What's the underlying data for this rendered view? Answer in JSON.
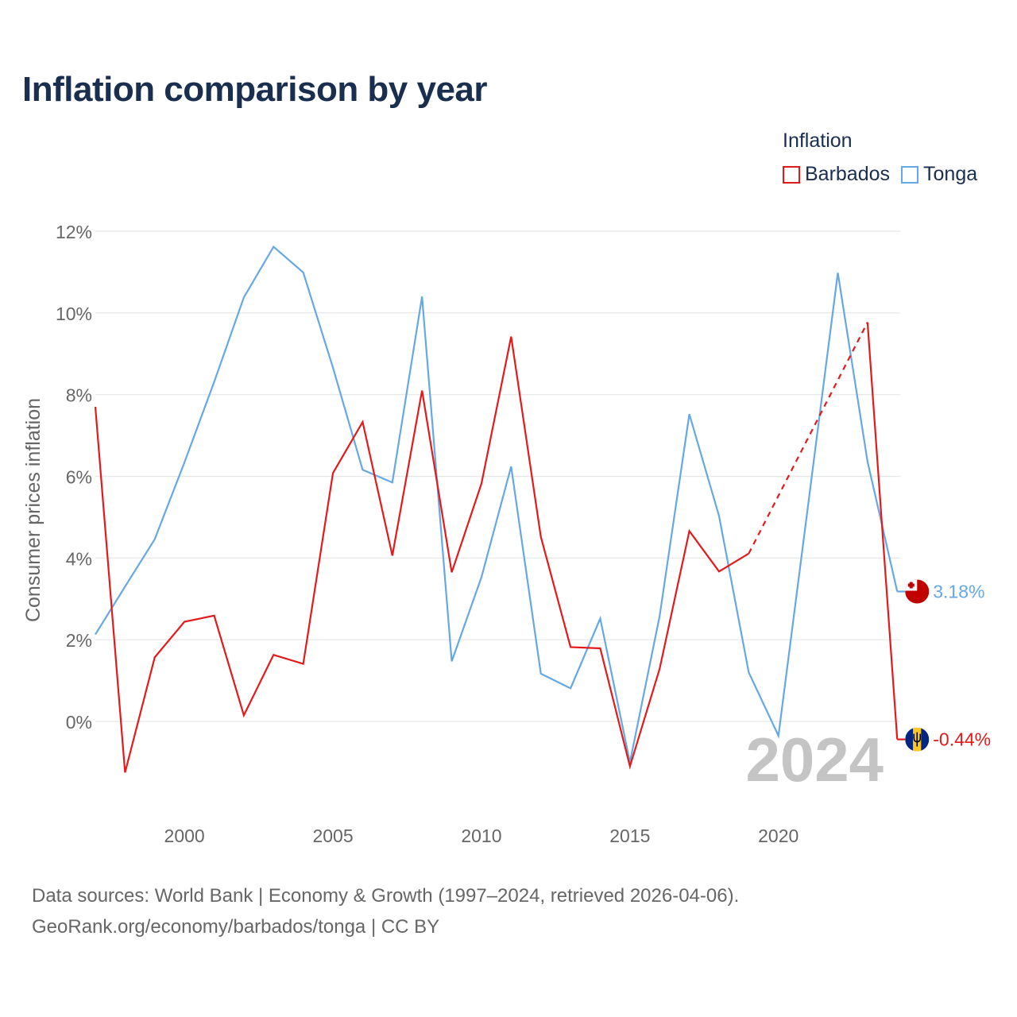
{
  "title": "Inflation comparison by year",
  "legend": {
    "title": "Inflation",
    "items": [
      {
        "label": "Barbados",
        "color": "#e31a1c"
      },
      {
        "label": "Tonga",
        "color": "#66a8e3"
      }
    ]
  },
  "chart_data": {
    "type": "line",
    "title": "Inflation comparison by year",
    "xlabel": "",
    "ylabel": "Consumer prices inflation",
    "xlim": [
      1997,
      2024
    ],
    "ylim": [
      -2,
      12
    ],
    "y_ticks": [
      0,
      2,
      4,
      6,
      8,
      10,
      12
    ],
    "y_tick_labels": [
      "0%",
      "2%",
      "4%",
      "6%",
      "8%",
      "10%",
      "12%"
    ],
    "x_ticks": [
      2000,
      2005,
      2010,
      2015,
      2020
    ],
    "x_tick_labels": [
      "2000",
      "2005",
      "2010",
      "2015",
      "2020"
    ],
    "grid": true,
    "year_label": "2024",
    "x": [
      1997,
      1998,
      1999,
      2000,
      2001,
      2002,
      2003,
      2004,
      2005,
      2006,
      2007,
      2008,
      2009,
      2010,
      2011,
      2012,
      2013,
      2014,
      2015,
      2016,
      2017,
      2018,
      2019,
      2020,
      2021,
      2022,
      2023,
      2024
    ],
    "series": [
      {
        "name": "Barbados",
        "color": "#e31a1c",
        "values": [
          7.7,
          -1.25,
          1.57,
          2.44,
          2.59,
          0.15,
          1.63,
          1.41,
          6.08,
          7.33,
          4.06,
          8.1,
          3.65,
          5.82,
          9.42,
          4.52,
          1.82,
          1.79,
          -1.1,
          1.29,
          4.66,
          3.67,
          4.11,
          null,
          null,
          null,
          9.77,
          -0.44
        ],
        "gap_dashed": true,
        "end_label": "-0.44%",
        "flag": "barbados-flag"
      },
      {
        "name": "Tonga",
        "color": "#66a8e3",
        "values": [
          2.13,
          3.3,
          4.46,
          6.34,
          8.31,
          10.38,
          11.62,
          10.99,
          8.66,
          6.16,
          5.85,
          10.4,
          1.47,
          3.53,
          6.24,
          1.17,
          0.81,
          2.52,
          -1.0,
          2.58,
          7.52,
          5.03,
          1.2,
          -0.35,
          5.3,
          10.98,
          6.36,
          3.18
        ],
        "end_label": "3.18%",
        "flag": "tonga-flag"
      }
    ]
  },
  "source": {
    "line1": "Data sources: World Bank | Economy & Growth (1997–2024, retrieved 2026-04-06).",
    "line2": "GeoRank.org/economy/barbados/tonga | CC BY"
  }
}
